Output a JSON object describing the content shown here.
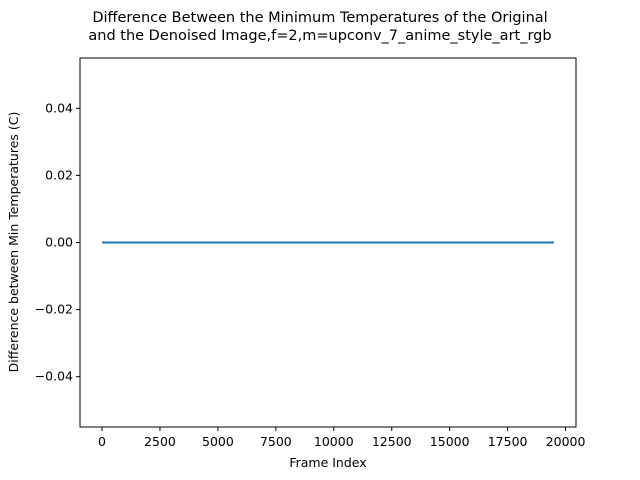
{
  "chart_data": {
    "type": "line",
    "title_lines": [
      "Difference Between the Minimum Temperatures of the Original",
      "and the Denoised Image,f=2,m=upconv_7_anime_style_art_rgb"
    ],
    "xlabel": "Frame Index",
    "ylabel": "Difference between Min Temperatures (C)",
    "xlim": [
      -950,
      20450
    ],
    "ylim": [
      -0.055,
      0.055
    ],
    "x_ticks": [
      0,
      2500,
      5000,
      7500,
      10000,
      12500,
      15000,
      17500,
      20000
    ],
    "x_tick_labels": [
      "0",
      "2500",
      "5000",
      "7500",
      "10000",
      "12500",
      "15000",
      "17500",
      "20000"
    ],
    "y_ticks": [
      -0.04,
      -0.02,
      0.0,
      0.02,
      0.04
    ],
    "y_tick_labels": [
      "−0.04",
      "−0.02",
      "0.00",
      "0.02",
      "0.04"
    ],
    "grid": false,
    "series": [
      {
        "color": "#1f77b4",
        "x": [
          0,
          19500
        ],
        "y": [
          0,
          0
        ]
      }
    ]
  }
}
